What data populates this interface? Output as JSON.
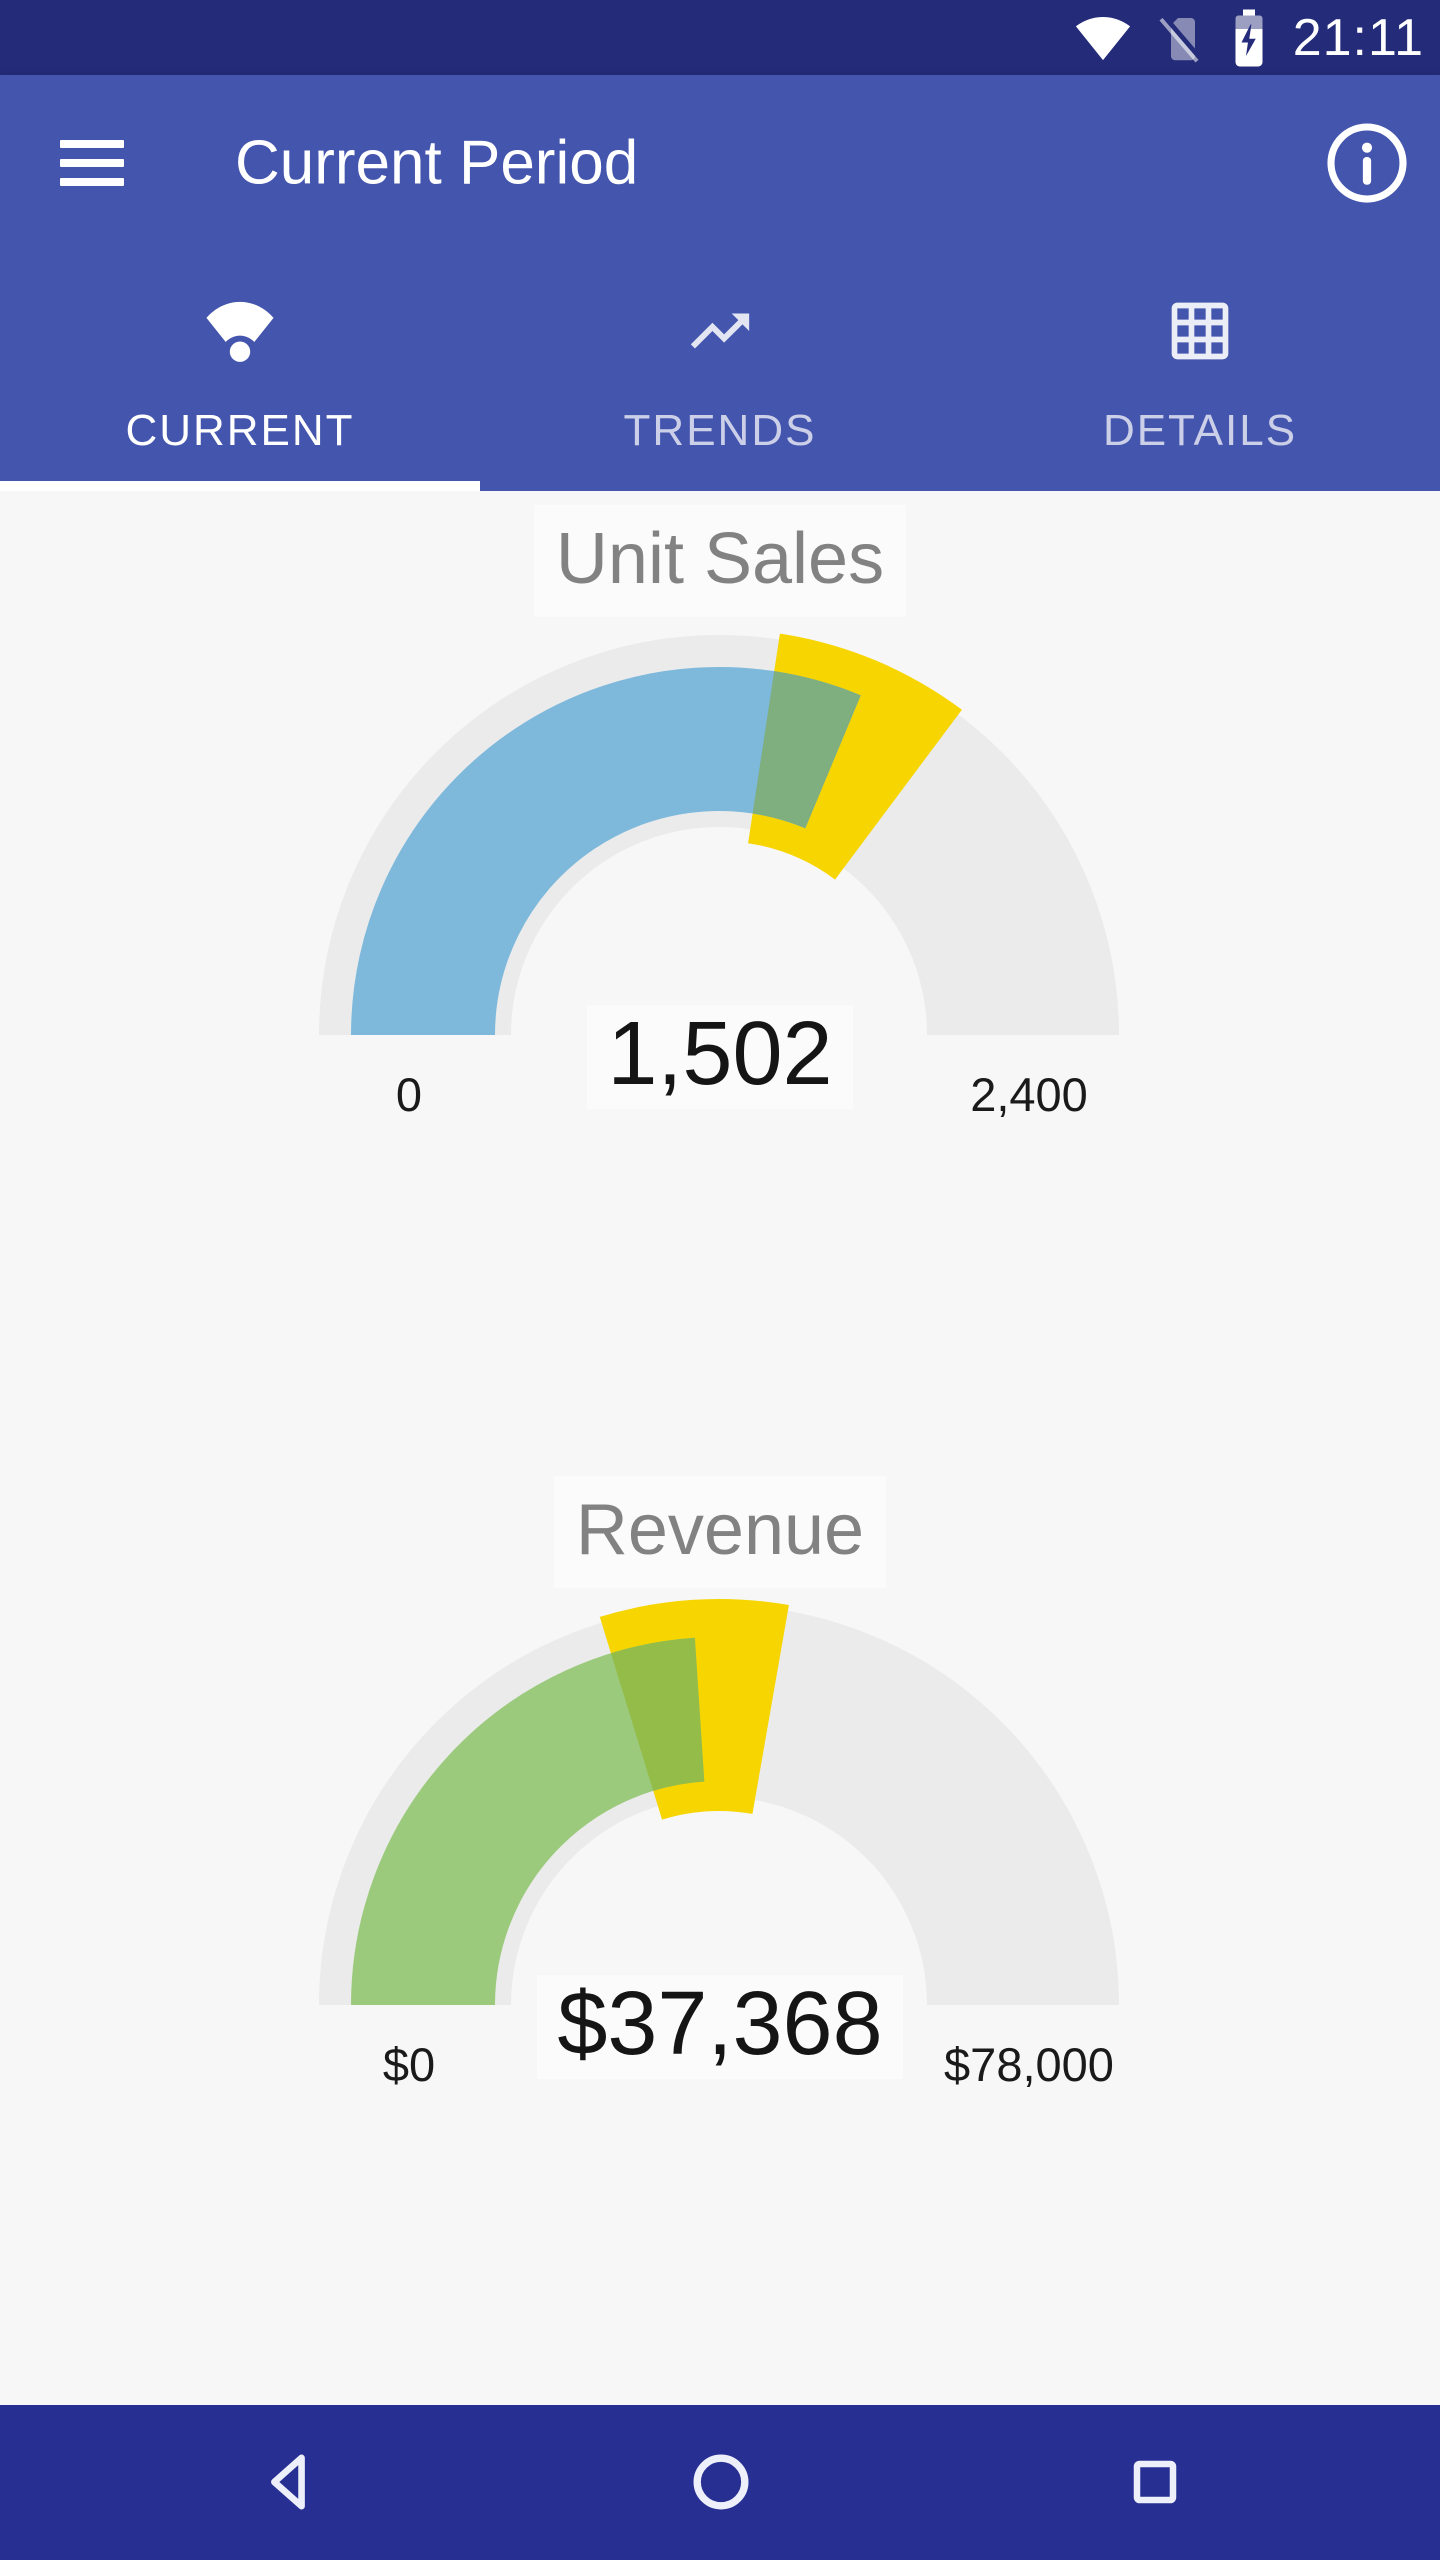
{
  "colors": {
    "primary": "#4455AE",
    "status_bg": "#242B78",
    "nav_bg": "#272F93",
    "content_bg": "#F7F7F7",
    "tab_indicator": "#FFFFFF"
  },
  "status_bar": {
    "time": "21:11",
    "icons": [
      "wifi-icon",
      "no-sim-icon",
      "battery-charging-icon"
    ]
  },
  "app_bar": {
    "title": "Current Period",
    "menu_icon": "hamburger-menu-icon",
    "info_icon": "info-icon",
    "tabs": [
      {
        "label": "CURRENT",
        "icon": "wifi-signal-icon",
        "selected": true
      },
      {
        "label": "TRENDS",
        "icon": "trending-up-icon",
        "selected": false
      },
      {
        "label": "DETAILS",
        "icon": "grid-icon",
        "selected": false
      }
    ]
  },
  "chart_data": [
    {
      "type": "gauge",
      "title": "Unit Sales",
      "value": 1502,
      "value_label": "1,502",
      "min": 0,
      "max": 2400,
      "min_label": "0",
      "max_label": "2,400",
      "target_band": [
        1315,
        1690
      ],
      "colors": {
        "value_arc": "#7EB9DC",
        "band": "#F7D500",
        "overlap": "#7FAE7F",
        "track": "#EBEBEB"
      }
    },
    {
      "type": "gauge",
      "title": "Revenue",
      "value": 37368,
      "value_label": "$37,368",
      "min": 0,
      "max": 78000,
      "min_label": "$0",
      "max_label": "$78,000",
      "target_band": [
        31600,
        43300
      ],
      "colors": {
        "value_arc": "#9CCA7D",
        "band": "#F7D500",
        "overlap": "#93BC48",
        "track": "#EBEBEB"
      }
    }
  ],
  "nav_bar": {
    "icons": [
      "back-icon",
      "home-icon",
      "recents-icon"
    ]
  }
}
